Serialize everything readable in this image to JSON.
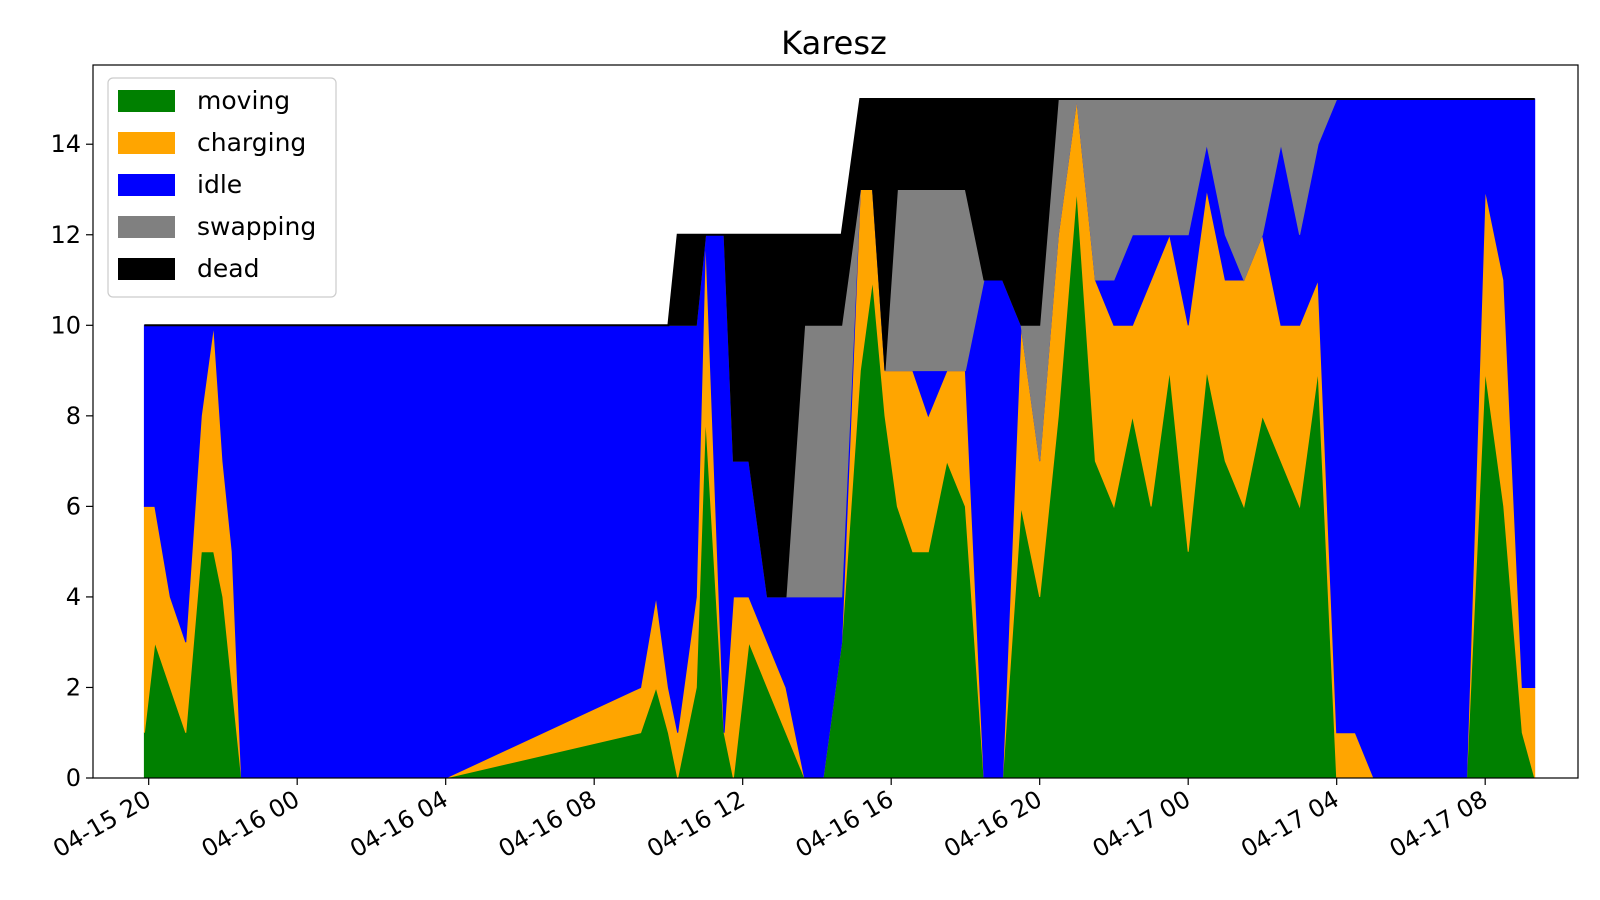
{
  "chart_data": {
    "type": "area",
    "stacked": true,
    "title": "Karesz",
    "xlabel": "",
    "ylabel": "",
    "x_range": [
      "2025-04-15 18:30",
      "2025-04-17 10:30"
    ],
    "ylim": [
      0,
      15.75
    ],
    "y_ticks": [
      0,
      2,
      4,
      6,
      8,
      10,
      12,
      14
    ],
    "x_ticks": [
      {
        "at": "2025-04-15 20:00",
        "label": "04-15 20"
      },
      {
        "at": "2025-04-16 00:00",
        "label": "04-16 00"
      },
      {
        "at": "2025-04-16 04:00",
        "label": "04-16 04"
      },
      {
        "at": "2025-04-16 08:00",
        "label": "04-16 08"
      },
      {
        "at": "2025-04-16 12:00",
        "label": "04-16 12"
      },
      {
        "at": "2025-04-16 16:00",
        "label": "04-16 16"
      },
      {
        "at": "2025-04-16 20:00",
        "label": "04-16 20"
      },
      {
        "at": "2025-04-17 00:00",
        "label": "04-17 00"
      },
      {
        "at": "2025-04-17 04:00",
        "label": "04-17 04"
      },
      {
        "at": "2025-04-17 08:00",
        "label": "04-17 08"
      }
    ],
    "grid": false,
    "legend_position": "top-left",
    "x": [
      "2025-04-15 19:53",
      "2025-04-15 20:10",
      "2025-04-15 20:35",
      "2025-04-15 21:00",
      "2025-04-15 21:25",
      "2025-04-15 21:45",
      "2025-04-15 22:00",
      "2025-04-15 22:15",
      "2025-04-15 22:30",
      "2025-04-15 22:50",
      "2025-04-15 23:10",
      "2025-04-15 23:30",
      "2025-04-16 04:00",
      "2025-04-16 09:15",
      "2025-04-16 09:40",
      "2025-04-16 10:00",
      "2025-04-16 10:15",
      "2025-04-16 10:45",
      "2025-04-16 11:00",
      "2025-04-16 11:30",
      "2025-04-16 11:45",
      "2025-04-16 12:10",
      "2025-04-16 12:40",
      "2025-04-16 13:10",
      "2025-04-16 13:40",
      "2025-04-16 14:10",
      "2025-04-16 14:40",
      "2025-04-16 15:10",
      "2025-04-16 15:30",
      "2025-04-16 15:50",
      "2025-04-16 16:10",
      "2025-04-16 16:35",
      "2025-04-16 17:00",
      "2025-04-16 17:30",
      "2025-04-16 18:00",
      "2025-04-16 18:30",
      "2025-04-16 19:00",
      "2025-04-16 19:30",
      "2025-04-16 20:00",
      "2025-04-16 20:30",
      "2025-04-16 21:00",
      "2025-04-16 21:30",
      "2025-04-16 22:00",
      "2025-04-16 22:30",
      "2025-04-16 23:00",
      "2025-04-16 23:30",
      "2025-04-17 00:00",
      "2025-04-17 00:30",
      "2025-04-17 01:00",
      "2025-04-17 01:30",
      "2025-04-17 02:00",
      "2025-04-17 02:30",
      "2025-04-17 03:00",
      "2025-04-17 03:30",
      "2025-04-17 04:00",
      "2025-04-17 04:30",
      "2025-04-17 05:00",
      "2025-04-17 06:00",
      "2025-04-17 07:30",
      "2025-04-17 08:00",
      "2025-04-17 08:30",
      "2025-04-17 09:00",
      "2025-04-17 09:20"
    ],
    "series": [
      {
        "name": "moving",
        "color": "#008000",
        "values": [
          1,
          3,
          2,
          1,
          5,
          5,
          4,
          2,
          0,
          0,
          0,
          0,
          0,
          1,
          2,
          1,
          0,
          2,
          8,
          1,
          0,
          3,
          2,
          1,
          0,
          0,
          3,
          9,
          11,
          8,
          6,
          5,
          5,
          7,
          6,
          0,
          0,
          6,
          4,
          8,
          13,
          7,
          6,
          8,
          6,
          9,
          5,
          9,
          7,
          6,
          8,
          7,
          6,
          9,
          0,
          0,
          0,
          0,
          0,
          9,
          6,
          1,
          0
        ]
      },
      {
        "name": "charging",
        "color": "#ffa500",
        "values": [
          5,
          3,
          2,
          2,
          3,
          5,
          3,
          3,
          0,
          0,
          0,
          0,
          0,
          1,
          2,
          1,
          1,
          2,
          4,
          0,
          4,
          1,
          1,
          1,
          0,
          0,
          0,
          4,
          2,
          1,
          3,
          4,
          3,
          2,
          3,
          0,
          0,
          4,
          3,
          4,
          2,
          4,
          4,
          2,
          5,
          3,
          5,
          4,
          4,
          5,
          4,
          3,
          4,
          2,
          1,
          1,
          0,
          0,
          0,
          4,
          5,
          1,
          2
        ]
      },
      {
        "name": "idle",
        "color": "#0000ff",
        "values": [
          4,
          4,
          6,
          7,
          2,
          0,
          3,
          5,
          10,
          10,
          10,
          10,
          10,
          8,
          6,
          8,
          9,
          6,
          0,
          11,
          3,
          3,
          1,
          2,
          4,
          4,
          1,
          0,
          0,
          0,
          0,
          0,
          1,
          0,
          0,
          11,
          11,
          0,
          0,
          0,
          0,
          0,
          1,
          2,
          1,
          0,
          2,
          1,
          1,
          0,
          0,
          4,
          2,
          3,
          14,
          14,
          15,
          15,
          15,
          2,
          4,
          13,
          13
        ]
      },
      {
        "name": "swapping",
        "color": "#808080",
        "values": [
          0,
          0,
          0,
          0,
          0,
          0,
          0,
          0,
          0,
          0,
          0,
          0,
          0,
          0,
          0,
          0,
          0,
          0,
          0,
          0,
          0,
          0,
          0,
          0,
          6,
          6,
          6,
          0,
          0,
          0,
          4,
          4,
          4,
          4,
          4,
          0,
          0,
          0,
          3,
          3,
          0,
          4,
          4,
          3,
          3,
          3,
          3,
          1,
          3,
          4,
          3,
          1,
          3,
          1,
          0,
          0,
          0,
          0,
          0,
          0,
          0,
          0,
          0
        ]
      },
      {
        "name": "dead",
        "color": "#000000",
        "values": [
          0,
          0,
          0,
          0,
          0,
          0,
          0,
          0,
          0,
          0,
          0,
          0,
          0,
          0,
          0,
          0,
          2,
          2,
          0,
          0,
          5,
          5,
          8,
          8,
          2,
          2,
          2,
          2,
          2,
          6,
          2,
          2,
          2,
          2,
          2,
          4,
          4,
          5,
          5,
          0,
          0,
          0,
          0,
          0,
          0,
          0,
          0,
          0,
          0,
          0,
          0,
          0,
          0,
          0,
          0,
          0,
          0,
          0,
          0,
          0,
          0,
          0,
          0
        ]
      }
    ]
  }
}
